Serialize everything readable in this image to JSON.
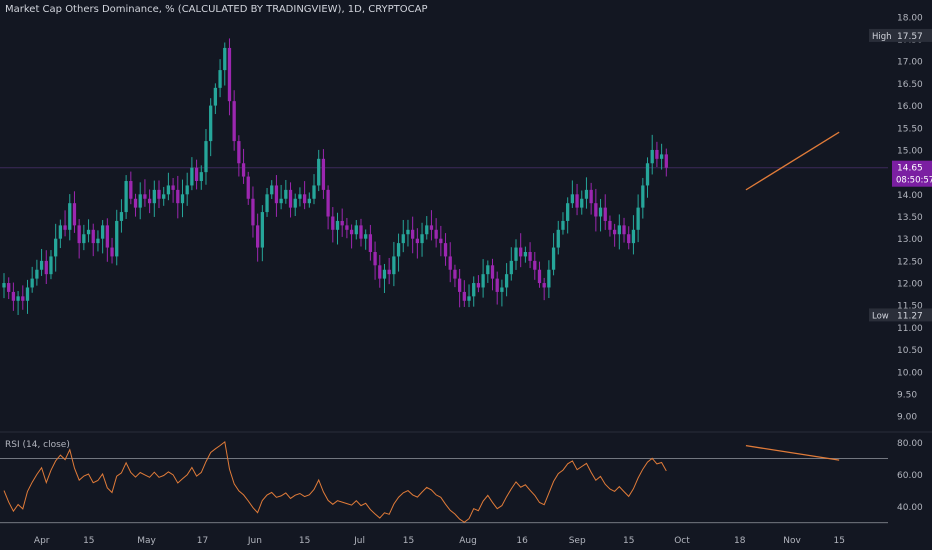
{
  "header": {
    "title": "Market Cap Others Dominance, % (CALCULATED BY TRADINGVIEW), 1D, CRYPTOCAP"
  },
  "colors": {
    "background": "#131722",
    "up": "#26a69a",
    "down": "#9c27b0",
    "rsi_line": "#e07b39",
    "trendline": "#e07b39",
    "rsi_bands": "#9598a1",
    "last_price_line": "#3d2a5a",
    "axis_text": "#b2b5be"
  },
  "chart_data": {
    "type": "candlestick",
    "title": "Market Cap Others Dominance, % (CALCULATED BY TRADINGVIEW), 1D, CRYPTOCAP",
    "price_axis": {
      "ticks": [
        "18.00",
        "17.50",
        "17.00",
        "16.50",
        "16.00",
        "15.50",
        "15.00",
        "14.50",
        "14.00",
        "13.50",
        "13.00",
        "12.50",
        "12.00",
        "11.50",
        "11.00",
        "10.50",
        "10.00",
        "9.50",
        "9.00"
      ],
      "range": [
        8.8,
        18.2
      ]
    },
    "time_axis": {
      "ticks": [
        "Apr",
        "15",
        "May",
        "17",
        "Jun",
        "15",
        "Jul",
        "15",
        "Aug",
        "16",
        "Sep",
        "15",
        "Oct",
        "18",
        "Nov",
        "15"
      ]
    },
    "markers": {
      "high_label": "High",
      "high_value": "17.57",
      "low_label": "Low",
      "low_value": "11.27",
      "last_value": "14.65",
      "countdown": "08:50:57"
    },
    "trendline": {
      "x": [
        0.84,
        0.945
      ],
      "y": [
        14.1,
        15.4
      ]
    },
    "close": [
      12.0,
      11.8,
      11.6,
      11.7,
      11.6,
      11.9,
      12.1,
      12.3,
      12.5,
      12.2,
      12.6,
      13.0,
      13.3,
      13.2,
      13.8,
      13.3,
      12.9,
      13.1,
      13.2,
      12.9,
      13.0,
      13.3,
      12.8,
      12.6,
      13.4,
      13.6,
      14.3,
      13.9,
      13.7,
      14.0,
      13.9,
      13.8,
      14.1,
      13.9,
      14.0,
      14.2,
      14.1,
      13.8,
      14.0,
      14.2,
      14.6,
      14.3,
      14.5,
      15.2,
      16.0,
      16.4,
      16.8,
      17.3,
      16.1,
      15.2,
      14.7,
      14.4,
      13.9,
      13.3,
      12.8,
      13.6,
      14.0,
      14.2,
      13.8,
      13.9,
      14.1,
      13.7,
      13.9,
      14.0,
      13.8,
      13.9,
      14.2,
      14.8,
      14.1,
      13.5,
      13.2,
      13.4,
      13.3,
      13.2,
      13.1,
      13.3,
      13.0,
      13.1,
      12.7,
      12.4,
      12.1,
      12.3,
      12.2,
      12.6,
      12.9,
      13.1,
      13.2,
      13.0,
      12.9,
      13.1,
      13.3,
      13.2,
      13.0,
      12.9,
      12.6,
      12.3,
      12.1,
      11.8,
      11.6,
      11.7,
      12.0,
      11.9,
      12.2,
      12.4,
      12.1,
      11.8,
      11.9,
      12.2,
      12.5,
      12.8,
      12.6,
      12.7,
      12.5,
      12.3,
      12.0,
      11.9,
      12.3,
      12.8,
      13.2,
      13.4,
      13.8,
      14.0,
      13.7,
      13.9,
      14.1,
      13.8,
      13.5,
      13.7,
      13.4,
      13.2,
      13.1,
      13.3,
      13.1,
      12.9,
      13.2,
      13.7,
      14.2,
      14.7,
      15.0,
      14.8,
      14.9,
      14.6
    ]
  },
  "rsi": {
    "label": "RSI (14, close)",
    "ticks": [
      "80.00",
      "60.00",
      "40.00"
    ],
    "range": [
      28,
      84
    ],
    "upper_band": 70,
    "lower_band": 30,
    "trendline": {
      "x": [
        0.84,
        0.945
      ],
      "y": [
        78,
        69
      ]
    }
  }
}
